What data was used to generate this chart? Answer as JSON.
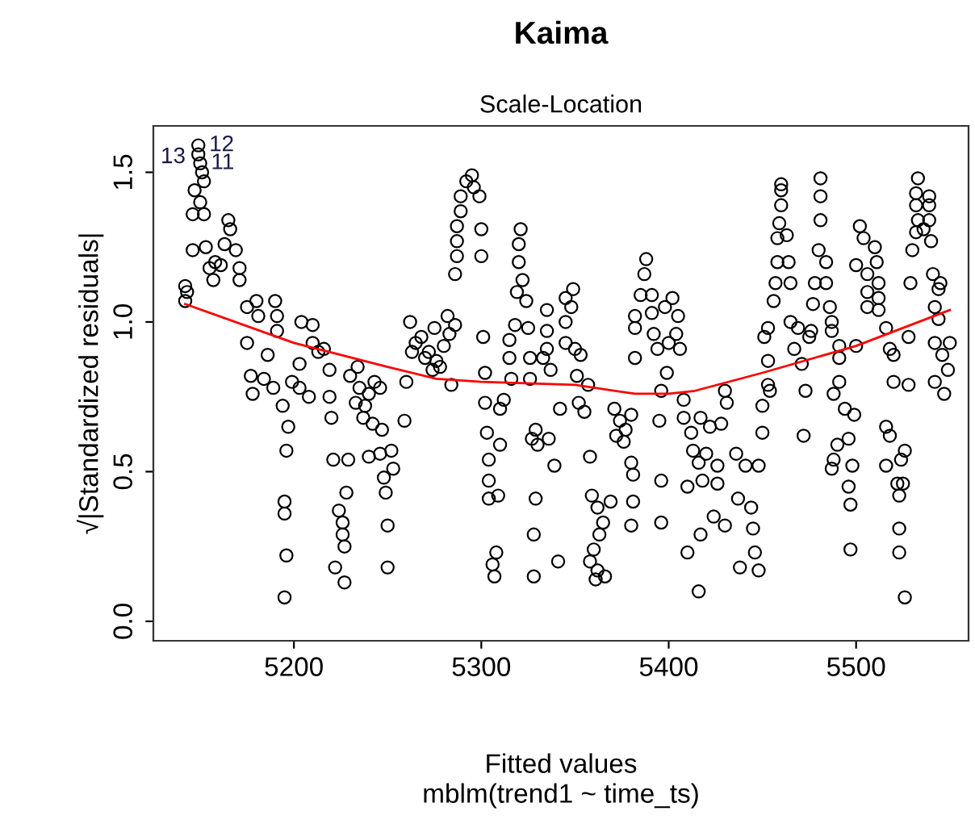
{
  "chart_data": {
    "type": "scatter",
    "title": "Kaima",
    "subtitle": "Scale-Location",
    "xlabel": "Fitted values",
    "ylabel": "√|Standardized residuals|",
    "annotations": [
      "mblm(trend1 ~ time_ts)",
      {
        "text": "13",
        "x": 5147,
        "y": 1.55
      },
      {
        "text": "12",
        "x": 5150,
        "y": 1.59
      },
      {
        "text": "11",
        "x": 5151,
        "y": 1.53
      }
    ],
    "xlim": [
      5125,
      5560
    ],
    "ylim": [
      -0.065,
      1.655
    ],
    "xticks": [
      5200,
      5300,
      5400,
      5500
    ],
    "yticks": [
      {
        "value": 0,
        "label": "0.0"
      },
      0.5,
      {
        "value": 1,
        "label": "1.0"
      },
      1.5
    ],
    "grid": false,
    "legend": false,
    "series": [
      {
        "color": "#000000",
        "marker": "circle",
        "x": [
          5149,
          5149,
          5150,
          5151,
          5152,
          5147,
          5150,
          5146,
          5152,
          5146,
          5153,
          5142,
          5143,
          5142,
          5165,
          5166,
          5163,
          5169,
          5155,
          5158,
          5161,
          5157,
          5171,
          5171,
          5175,
          5180,
          5190,
          5181,
          5191,
          5175,
          5191,
          5186,
          5177,
          5178,
          5189,
          5184,
          5194,
          5197,
          5196,
          5195,
          5195,
          5196,
          5195,
          5204,
          5210,
          5199,
          5203,
          5208,
          5203,
          5213,
          5216,
          5219,
          5210,
          5219,
          5220,
          5221,
          5229,
          5228,
          5224,
          5226,
          5226,
          5227,
          5222,
          5227,
          5230,
          5235,
          5240,
          5243,
          5246,
          5233,
          5237,
          5242,
          5247,
          5238,
          5234,
          5259,
          5260,
          5240,
          5246,
          5252,
          5248,
          5249,
          5250,
          5250,
          5253,
          5262,
          5265,
          5270,
          5274,
          5263,
          5268,
          5272,
          5276,
          5280,
          5283,
          5278,
          5275,
          5284,
          5282,
          5286,
          5295,
          5292,
          5296,
          5289,
          5299,
          5289,
          5287,
          5287,
          5300,
          5287,
          5300,
          5286,
          5301,
          5302,
          5302,
          5303,
          5310,
          5304,
          5304,
          5304,
          5309,
          5308,
          5306,
          5307,
          5321,
          5320,
          5320,
          5322,
          5319,
          5324,
          5318,
          5325,
          5315,
          5315,
          5316,
          5312,
          5310,
          5326,
          5326,
          5329,
          5330,
          5327,
          5329,
          5328,
          5328,
          5335,
          5335,
          5335,
          5333,
          5337,
          5336,
          5339,
          5342,
          5341,
          5345,
          5349,
          5348,
          5345,
          5345,
          5350,
          5353,
          5351,
          5352,
          5355,
          5357,
          5358,
          5359,
          5362,
          5365,
          5363,
          5360,
          5358,
          5362,
          5361,
          5366,
          5369,
          5371,
          5374,
          5377,
          5380,
          5372,
          5376,
          5380,
          5381,
          5381,
          5380,
          5388,
          5387,
          5385,
          5382,
          5382,
          5382,
          5391,
          5391,
          5392,
          5394,
          5395,
          5396,
          5396,
          5398,
          5402,
          5405,
          5404,
          5400,
          5406,
          5399,
          5396,
          5408,
          5408,
          5412,
          5413,
          5416,
          5410,
          5417,
          5410,
          5416,
          5417,
          5422,
          5428,
          5431,
          5430,
          5420,
          5426,
          5436,
          5441,
          5448,
          5418,
          5426,
          5437,
          5444,
          5424,
          5430,
          5445,
          5446,
          5448,
          5438,
          5450,
          5450,
          5454,
          5453,
          5453,
          5451,
          5453,
          5460,
          5460,
          5460,
          5459,
          5463,
          5458,
          5458,
          5464,
          5457,
          5465,
          5456,
          5465,
          5469,
          5467,
          5476,
          5475,
          5471,
          5473,
          5472,
          5481,
          5481,
          5481,
          5480,
          5484,
          5478,
          5484,
          5477,
          5486,
          5487,
          5487,
          5491,
          5491,
          5488,
          5491,
          5494,
          5499,
          5496,
          5490,
          5488,
          5487,
          5498,
          5496,
          5497,
          5497,
          5500,
          5502,
          5504,
          5510,
          5511,
          5500,
          5506,
          5512,
          5506,
          5512,
          5506,
          5512,
          5516,
          5518,
          5520,
          5520,
          5528,
          5528,
          5516,
          5518,
          5516,
          5524,
          5526,
          5522,
          5525,
          5523,
          5523,
          5523,
          5526,
          5533,
          5532,
          5539,
          5532,
          5539,
          5533,
          5539,
          5532,
          5536,
          5540,
          5530,
          5529,
          5541,
          5545,
          5544,
          5542,
          5544,
          5542,
          5550,
          5546,
          5549,
          5542,
          5547
        ],
        "values": [
          1.59,
          1.56,
          1.53,
          1.5,
          1.47,
          1.44,
          1.4,
          1.36,
          1.36,
          1.24,
          1.25,
          1.12,
          1.1,
          1.07,
          1.34,
          1.31,
          1.26,
          1.24,
          1.18,
          1.2,
          1.19,
          1.14,
          1.18,
          1.14,
          1.05,
          1.07,
          1.07,
          1.02,
          1.02,
          0.93,
          0.97,
          0.89,
          0.82,
          0.76,
          0.78,
          0.81,
          0.72,
          0.65,
          0.57,
          0.4,
          0.36,
          0.22,
          0.08,
          1.0,
          0.99,
          0.8,
          0.78,
          0.75,
          0.86,
          0.9,
          0.91,
          0.84,
          0.93,
          0.75,
          0.68,
          0.54,
          0.54,
          0.43,
          0.37,
          0.33,
          0.29,
          0.25,
          0.18,
          0.13,
          0.82,
          0.78,
          0.76,
          0.8,
          0.78,
          0.73,
          0.68,
          0.66,
          0.64,
          0.72,
          0.85,
          0.67,
          0.8,
          0.55,
          0.56,
          0.57,
          0.48,
          0.43,
          0.32,
          0.18,
          0.51,
          1.0,
          0.93,
          0.88,
          0.84,
          0.9,
          0.95,
          0.9,
          0.87,
          0.92,
          0.96,
          0.85,
          0.98,
          0.79,
          1.02,
          0.99,
          1.49,
          1.47,
          1.45,
          1.42,
          1.42,
          1.37,
          1.32,
          1.27,
          1.31,
          1.22,
          1.22,
          1.16,
          0.95,
          0.83,
          0.73,
          0.63,
          0.59,
          0.54,
          0.47,
          0.41,
          0.42,
          0.23,
          0.19,
          0.15,
          1.31,
          1.26,
          1.2,
          1.14,
          1.1,
          1.07,
          0.99,
          0.98,
          0.94,
          0.88,
          0.81,
          0.74,
          0.71,
          0.88,
          0.81,
          0.64,
          0.59,
          0.61,
          0.41,
          0.29,
          0.15,
          1.04,
          0.97,
          0.91,
          0.88,
          0.84,
          0.61,
          0.52,
          0.71,
          0.2,
          1.08,
          1.11,
          1.05,
          1.0,
          0.93,
          0.91,
          0.89,
          0.82,
          0.73,
          0.7,
          0.79,
          0.55,
          0.42,
          0.38,
          0.33,
          0.29,
          0.24,
          0.2,
          0.17,
          0.14,
          0.15,
          0.4,
          0.71,
          0.67,
          0.64,
          0.69,
          0.62,
          0.6,
          0.53,
          0.49,
          0.4,
          0.32,
          1.21,
          1.16,
          1.09,
          1.02,
          0.98,
          0.88,
          1.09,
          1.03,
          0.96,
          0.91,
          0.67,
          0.47,
          0.33,
          1.05,
          1.08,
          1.02,
          0.96,
          0.93,
          0.91,
          0.83,
          0.77,
          0.74,
          0.68,
          0.63,
          0.57,
          0.53,
          0.45,
          0.29,
          0.23,
          0.1,
          0.68,
          0.65,
          0.66,
          0.73,
          0.77,
          0.56,
          0.52,
          0.56,
          0.52,
          0.52,
          0.47,
          0.46,
          0.41,
          0.38,
          0.35,
          0.32,
          0.31,
          0.23,
          0.17,
          0.18,
          0.63,
          0.72,
          0.77,
          0.79,
          0.87,
          0.95,
          0.98,
          1.46,
          1.44,
          1.39,
          1.33,
          1.29,
          1.28,
          1.2,
          1.2,
          1.13,
          1.13,
          1.07,
          1.0,
          0.98,
          0.91,
          0.97,
          0.95,
          0.86,
          0.77,
          0.62,
          1.48,
          1.42,
          1.34,
          1.24,
          1.2,
          1.13,
          1.13,
          1.06,
          1.05,
          1.0,
          0.97,
          0.92,
          0.88,
          0.76,
          0.8,
          0.71,
          0.69,
          0.61,
          0.59,
          0.54,
          0.51,
          0.52,
          0.45,
          0.39,
          0.24,
          0.92,
          1.32,
          1.28,
          1.25,
          1.2,
          1.19,
          1.16,
          1.13,
          1.1,
          1.08,
          1.05,
          1.04,
          0.98,
          0.91,
          0.89,
          0.8,
          0.79,
          0.95,
          0.65,
          0.62,
          0.52,
          0.54,
          0.57,
          0.46,
          0.46,
          0.42,
          0.31,
          0.23,
          0.08,
          1.48,
          1.43,
          1.42,
          1.39,
          1.39,
          1.34,
          1.34,
          1.3,
          1.31,
          1.27,
          1.24,
          1.13,
          1.16,
          1.13,
          1.11,
          1.05,
          1.01,
          0.93,
          0.93,
          0.89,
          0.84,
          0.8,
          0.76
        ]
      },
      {
        "type": "line",
        "color": "#ff0000",
        "x": [
          5142,
          5200,
          5250,
          5276,
          5300,
          5350,
          5382,
          5400,
          5414,
          5450,
          5500,
          5550
        ],
        "values": [
          1.06,
          0.93,
          0.85,
          0.81,
          0.8,
          0.79,
          0.76,
          0.76,
          0.77,
          0.83,
          0.92,
          1.04
        ]
      }
    ]
  }
}
